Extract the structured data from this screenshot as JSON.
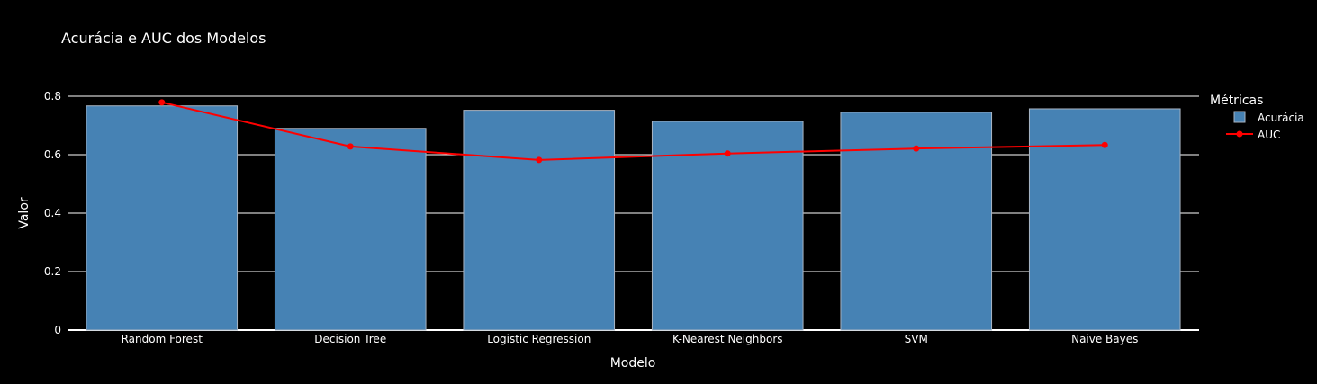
{
  "chart_data": {
    "type": "bar",
    "title": "Acurácia e AUC dos Modelos",
    "xlabel": "Modelo",
    "ylabel": "Valor",
    "categories": [
      "Random Forest",
      "Decision Tree",
      "Logistic Regression",
      "K-Nearest Neighbors",
      "SVM",
      "Naive Bayes"
    ],
    "ylim": [
      0,
      0.8
    ],
    "yticks": [
      "0",
      "0.2",
      "0.4",
      "0.6",
      "0.8"
    ],
    "ytick_values": [
      0,
      0.2,
      0.4,
      0.6,
      0.8
    ],
    "legend_title": "Métricas",
    "legend_position": "right",
    "series": [
      {
        "name": "Acurácia",
        "type": "bar",
        "color": "#4682b4",
        "values": [
          0.767,
          0.69,
          0.752,
          0.714,
          0.745,
          0.757
        ]
      },
      {
        "name": "AUC",
        "type": "line",
        "color": "#ff0000",
        "values": [
          0.779,
          0.628,
          0.582,
          0.604,
          0.621,
          0.633
        ]
      }
    ],
    "grid": true,
    "background": "#000000"
  }
}
